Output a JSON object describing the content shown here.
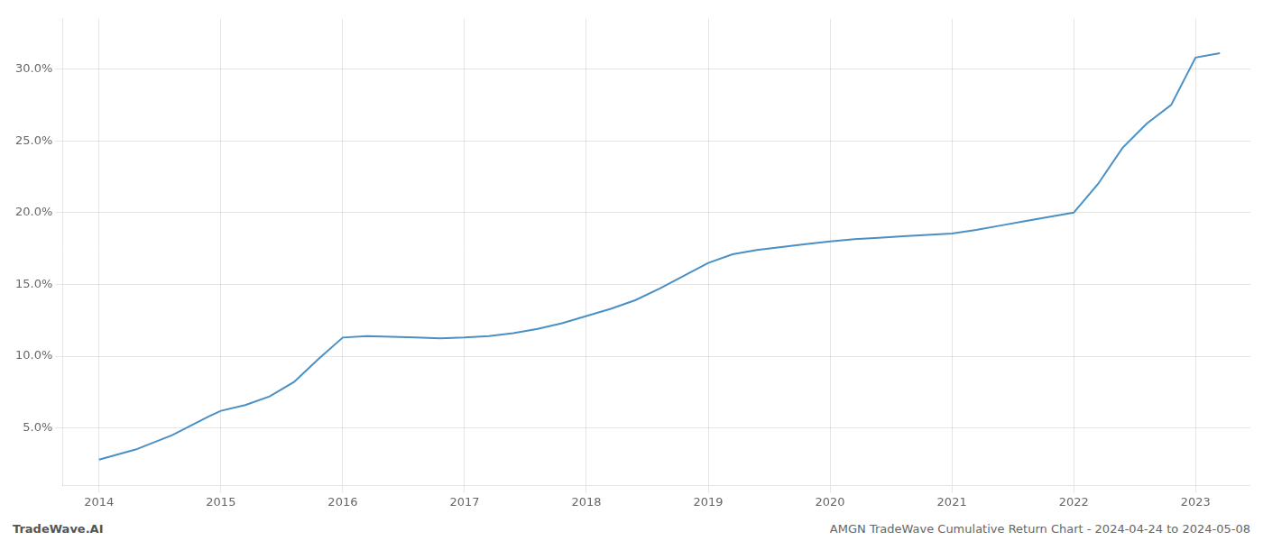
{
  "chart_data": {
    "type": "line",
    "title": "AMGN TradeWave Cumulative Return Chart - 2024-04-24 to 2024-05-08",
    "annotations": [
      "TradeWave.AI"
    ],
    "x": [
      2014.0,
      2014.3,
      2014.6,
      2014.9,
      2015.0,
      2015.2,
      2015.4,
      2015.6,
      2015.8,
      2016.0,
      2016.2,
      2016.4,
      2016.6,
      2016.8,
      2017.0,
      2017.2,
      2017.4,
      2017.6,
      2017.8,
      2018.0,
      2018.2,
      2018.4,
      2018.6,
      2018.8,
      2019.0,
      2019.2,
      2019.4,
      2019.6,
      2019.8,
      2020.0,
      2020.2,
      2020.4,
      2020.6,
      2020.8,
      2021.0,
      2021.2,
      2021.4,
      2021.6,
      2021.8,
      2022.0,
      2022.2,
      2022.4,
      2022.6,
      2022.8,
      2023.0,
      2023.2
    ],
    "values": [
      2.8,
      3.5,
      4.5,
      5.8,
      6.2,
      6.6,
      7.2,
      8.2,
      9.8,
      11.3,
      11.4,
      11.35,
      11.3,
      11.25,
      11.3,
      11.4,
      11.6,
      11.9,
      12.3,
      12.8,
      13.3,
      13.9,
      14.7,
      15.6,
      16.5,
      17.1,
      17.4,
      17.6,
      17.8,
      18.0,
      18.15,
      18.25,
      18.35,
      18.45,
      18.55,
      18.8,
      19.1,
      19.4,
      19.7,
      20.0,
      22.0,
      24.5,
      26.2,
      27.5,
      30.8,
      31.1
    ],
    "color": "#4a90c4",
    "xlim": [
      2013.7,
      2023.45
    ],
    "xticks": [
      2014,
      2015,
      2016,
      2017,
      2018,
      2019,
      2020,
      2021,
      2022,
      2023
    ],
    "ylim": [
      1.0,
      33.5
    ],
    "yticks": [
      {
        "value": 5.0,
        "label": "5.0%"
      },
      {
        "value": 10.0,
        "label": "10.0%"
      },
      {
        "value": 15.0,
        "label": "15.0%"
      },
      {
        "value": 20.0,
        "label": "20.0%"
      },
      {
        "value": 25.0,
        "label": "25.0%"
      },
      {
        "value": 30.0,
        "label": "30.0%"
      }
    ],
    "grid": true
  }
}
